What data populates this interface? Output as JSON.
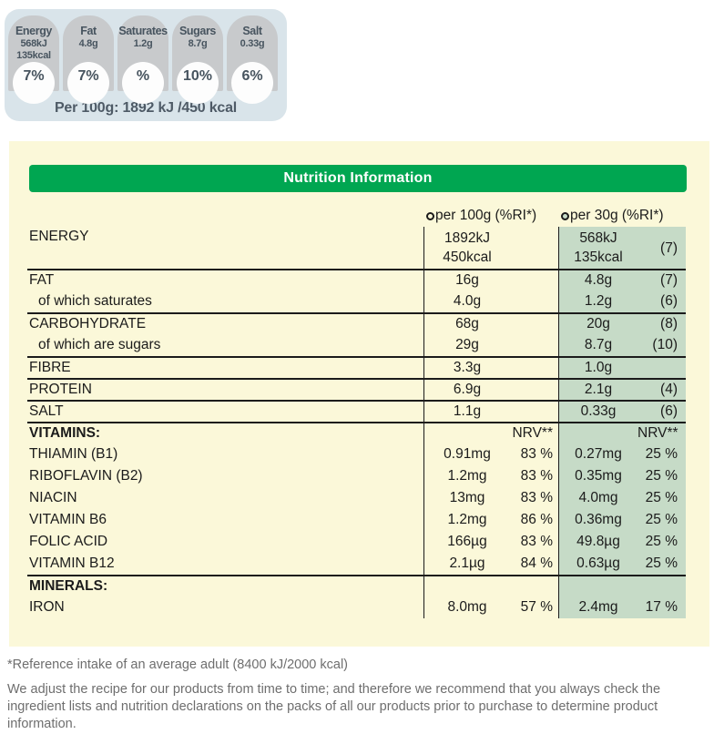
{
  "gda_panel": {
    "badges": [
      {
        "name": "Energy",
        "value1": "568kJ",
        "value2": "135kcal",
        "percent": "7%"
      },
      {
        "name": "Fat",
        "value1": "4.8g",
        "percent": "7%"
      },
      {
        "name": "Saturates",
        "value1": "1.2g",
        "percent": "%"
      },
      {
        "name": "Sugars",
        "value1": "8.7g",
        "percent": "10%"
      },
      {
        "name": "Salt",
        "value1": "0.33g",
        "percent": "6%"
      }
    ],
    "per_100g_line": "Per 100g: 1892 kJ /450 kcal"
  },
  "table": {
    "title": "Nutrition Information",
    "columns": [
      {
        "label": "per 100g (%RI*)"
      },
      {
        "label": "per 30g (%RI*)"
      }
    ],
    "rows": [
      {
        "label": "ENERGY",
        "v100": "1892kJ",
        "v100b": "450kcal",
        "v30": "568kJ",
        "v30b": "135kcal",
        "ri30": "(7)"
      },
      {
        "label": "FAT",
        "v100": "16g",
        "v30": "4.8g",
        "ri30": "(7)"
      },
      {
        "label": "of which saturates",
        "v100": "4.0g",
        "v30": "1.2g",
        "ri30": "(6)"
      },
      {
        "label": "CARBOHYDRATE",
        "v100": "68g",
        "v30": "20g",
        "ri30": "(8)"
      },
      {
        "label": "of which are sugars",
        "v100": "29g",
        "v30": "8.7g",
        "ri30": "(10)"
      },
      {
        "label": "FIBRE",
        "v100": "3.3g",
        "v30": "1.0g"
      },
      {
        "label": "PROTEIN",
        "v100": "6.9g",
        "v30": "2.1g",
        "ri30": "(4)"
      },
      {
        "label": "SALT",
        "v100": "1.1g",
        "v30": "0.33g",
        "ri30": "(6)"
      },
      {
        "label": "VITAMINS:",
        "ri100": "NRV**",
        "ri30": "NRV**"
      },
      {
        "label": "THIAMIN (B1)",
        "v100": "0.91mg",
        "ri100": "83 %",
        "v30": "0.27mg",
        "ri30": "25 %"
      },
      {
        "label": "RIBOFLAVIN (B2)",
        "v100": "1.2mg",
        "ri100": "83 %",
        "v30": "0.35mg",
        "ri30": "25 %"
      },
      {
        "label": "NIACIN",
        "v100": "13mg",
        "ri100": "83 %",
        "v30": "4.0mg",
        "ri30": "25 %"
      },
      {
        "label": "VITAMIN B6",
        "v100": "1.2mg",
        "ri100": "86 %",
        "v30": "0.36mg",
        "ri30": "25 %"
      },
      {
        "label": "FOLIC ACID",
        "v100": "166µg",
        "ri100": "83 %",
        "v30": "49.8µg",
        "ri30": "25 %"
      },
      {
        "label": "VITAMIN B12",
        "v100": "2.1µg",
        "ri100": "84 %",
        "v30": "0.63µg",
        "ri30": "25 %"
      },
      {
        "label": "MINERALS:"
      },
      {
        "label": "IRON",
        "v100": "8.0mg",
        "ri100": "57 %",
        "v30": "2.4mg",
        "ri30": "17 %"
      }
    ]
  },
  "footnotes": {
    "reference": "*Reference intake of an average adult (8400 kJ/2000 kcal)",
    "disclaimer": "We adjust the recipe for our products from time to time; and therefore we recommend that you always check the ingredient lists and nutrition declarations on the packs of all our products prior to purchase to determine product information."
  },
  "colors": {
    "green_bar": "#00a651",
    "col_green": "#c6dbc7",
    "panel_yellow": "#fbf8d9",
    "panel_blue": "#d9e4ea",
    "badge_gray": "#c8cacc",
    "badge_text": "#47545f",
    "table_text": "#1b1b1b",
    "footer_gray": "#6e6e6e"
  }
}
